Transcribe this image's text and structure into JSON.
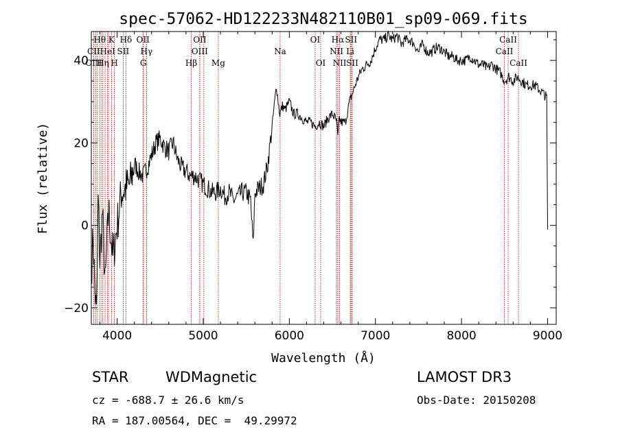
{
  "chart_data": {
    "type": "line",
    "title": "spec-57062-HD122233N482110B01_sp09-069.fits",
    "xlabel": "Wavelength (Å)",
    "ylabel": "Flux (relative)",
    "xlim": [
      3700,
      9100
    ],
    "ylim": [
      -24,
      47
    ],
    "xticks": [
      4000,
      5000,
      6000,
      7000,
      8000,
      9000
    ],
    "yticks": [
      -20,
      0,
      20,
      40
    ],
    "spectrum": {
      "name": "flux",
      "x": [
        3700,
        3720,
        3740,
        3760,
        3780,
        3800,
        3830,
        3860,
        3900,
        3950,
        4000,
        4050,
        4100,
        4150,
        4200,
        4250,
        4300,
        4350,
        4400,
        4450,
        4500,
        4550,
        4600,
        4650,
        4700,
        4750,
        4800,
        4850,
        4900,
        4950,
        5000,
        5050,
        5100,
        5150,
        5200,
        5250,
        5300,
        5350,
        5400,
        5450,
        5500,
        5550,
        5580,
        5600,
        5650,
        5700,
        5750,
        5800,
        5850,
        5870,
        5890,
        5920,
        5950,
        6000,
        6050,
        6100,
        6150,
        6200,
        6250,
        6300,
        6350,
        6400,
        6450,
        6500,
        6530,
        6550,
        6563,
        6580,
        6600,
        6650,
        6700,
        6750,
        6800,
        6850,
        6900,
        6950,
        7000,
        7050,
        7100,
        7150,
        7200,
        7250,
        7300,
        7350,
        7400,
        7450,
        7500,
        7550,
        7600,
        7650,
        7700,
        7750,
        7800,
        7850,
        7900,
        7950,
        8000,
        8050,
        8100,
        8150,
        8200,
        8250,
        8300,
        8350,
        8400,
        8450,
        8500,
        8550,
        8600,
        8650,
        8700,
        8750,
        8800,
        8850,
        8900,
        8950,
        8990,
        9000
      ],
      "y": [
        -12,
        -2,
        -15,
        -22,
        6,
        -9,
        3,
        -15,
        4,
        -8,
        0,
        8,
        9,
        10,
        15,
        13,
        12,
        14,
        17,
        20,
        21,
        19,
        18,
        20,
        16,
        14,
        13,
        12,
        12,
        11,
        10,
        9,
        8,
        8,
        9,
        7,
        8,
        6,
        7,
        8,
        8,
        6,
        -5,
        8,
        9,
        10,
        15,
        24,
        34,
        30,
        27,
        29,
        28,
        30,
        27,
        27,
        26,
        25,
        25,
        24,
        25,
        24,
        26,
        27,
        26,
        25,
        21,
        26,
        25,
        25,
        30,
        33,
        36,
        38,
        39,
        40,
        43,
        45,
        45,
        46,
        45,
        46,
        44,
        45,
        45,
        44,
        42,
        44,
        42,
        42,
        43,
        43,
        42,
        41,
        41,
        40,
        40,
        40,
        41,
        40,
        39,
        39,
        38,
        39,
        38,
        37,
        35,
        36,
        35,
        36,
        35,
        34,
        34,
        34,
        33,
        32,
        31,
        -1
      ],
      "color": "#000000"
    },
    "line_markers": {
      "color": "#aa0000",
      "lines": [
        {
          "label": "Hθ",
          "x": 3798,
          "row": 1
        },
        {
          "label": "K",
          "x": 3934,
          "row": 1
        },
        {
          "label": "Hδ",
          "x": 4102,
          "row": 1
        },
        {
          "label": "OII",
          "x": 4300,
          "row": 1
        },
        {
          "label": "OII",
          "x": 4960,
          "row": 1
        },
        {
          "label": "OI",
          "x": 6300,
          "row": 1
        },
        {
          "label": "Hα",
          "x": 6563,
          "row": 1
        },
        {
          "label": "SII",
          "x": 6717,
          "row": 1
        },
        {
          "label": "CaII",
          "x": 8542,
          "row": 1
        },
        {
          "label": "CII",
          "x": 3727,
          "row": 2
        },
        {
          "label": "HeI",
          "x": 3889,
          "row": 2
        },
        {
          "label": "SII",
          "x": 4070,
          "row": 2
        },
        {
          "label": "Hγ",
          "x": 4341,
          "row": 2
        },
        {
          "label": "OIII",
          "x": 4959,
          "row": 2
        },
        {
          "label": "Na",
          "x": 5893,
          "row": 2
        },
        {
          "label": "NII",
          "x": 6548,
          "row": 2
        },
        {
          "label": "Li",
          "x": 6708,
          "row": 2
        },
        {
          "label": "CaII",
          "x": 8498,
          "row": 2
        },
        {
          "label": "OIII",
          "x": 3727,
          "row": 3
        },
        {
          "label": "Hη",
          "x": 3835,
          "row": 3
        },
        {
          "label": "H",
          "x": 3968,
          "row": 3
        },
        {
          "label": "G",
          "x": 4304,
          "row": 3
        },
        {
          "label": "Hβ",
          "x": 4861,
          "row": 3
        },
        {
          "label": "Mg",
          "x": 5175,
          "row": 3
        },
        {
          "label": "OI",
          "x": 6364,
          "row": 3
        },
        {
          "label": "NII",
          "x": 6584,
          "row": 3
        },
        {
          "label": "SII",
          "x": 6731,
          "row": 3
        },
        {
          "label": "CaII",
          "x": 8662,
          "row": 3
        }
      ],
      "extra_lines": [
        3750,
        3770,
        3820,
        3860,
        3900,
        4340,
        5007,
        6563,
        6717,
        6731
      ]
    }
  },
  "info": {
    "object_type": "STAR",
    "subclass": "WDMagnetic",
    "survey": "LAMOST DR3",
    "redshift": "cz = -688.7 ± 26.6 km/s",
    "obs_date": "Obs-Date: 20150208",
    "coords": "RA = 187.00564, DEC =  49.29972"
  }
}
